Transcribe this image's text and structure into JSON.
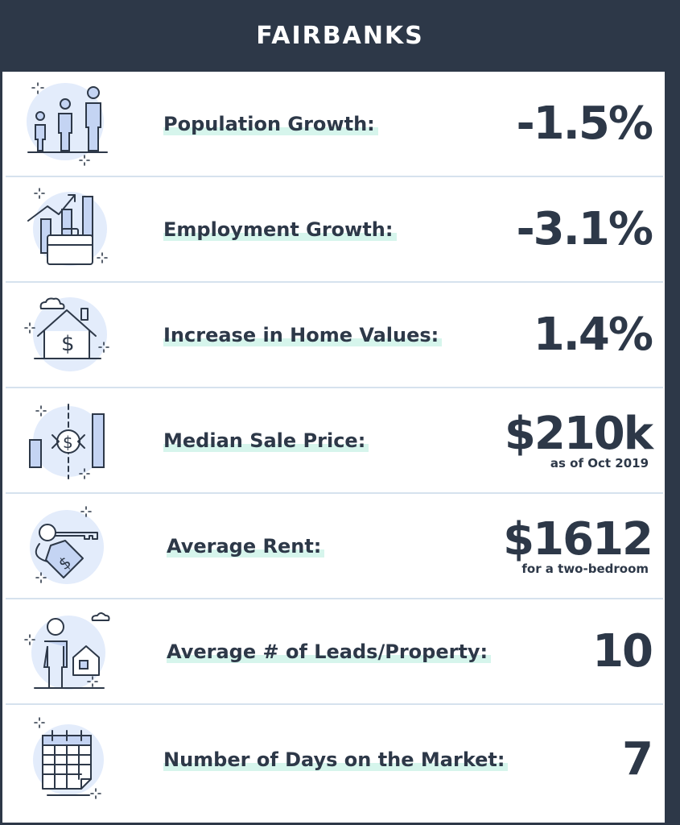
{
  "header": {
    "title": "FAIRBANKS"
  },
  "rows": [
    {
      "label": "Population Growth:",
      "value": "-1.5%",
      "note": "",
      "icon": "family-icon"
    },
    {
      "label": "Employment Growth:",
      "value": "-3.1%",
      "note": "",
      "icon": "briefcase-chart-icon"
    },
    {
      "label": "Increase in Home Values:",
      "value": "1.4%",
      "note": "",
      "icon": "house-dollar-icon"
    },
    {
      "label": "Median Sale Price:",
      "value": "$210k",
      "note": "as  of Oct 2019",
      "icon": "price-bars-icon"
    },
    {
      "label": "Average Rent:",
      "value": "$1612",
      "note": "for a two-bedroom",
      "icon": "key-tag-icon"
    },
    {
      "label": "Average # of Leads/Property:",
      "value": "10",
      "note": "",
      "icon": "person-house-icon"
    },
    {
      "label": "Number of Days on the Market:",
      "value": "7",
      "note": "",
      "icon": "calendar-icon"
    }
  ],
  "colors": {
    "header_bg": "#2d3848",
    "text": "#2d3848",
    "divider": "#d6e2ee",
    "highlight": "#d6f5ec",
    "icon_fill": "#c4d4f3",
    "icon_blob": "#e3ecfb"
  }
}
